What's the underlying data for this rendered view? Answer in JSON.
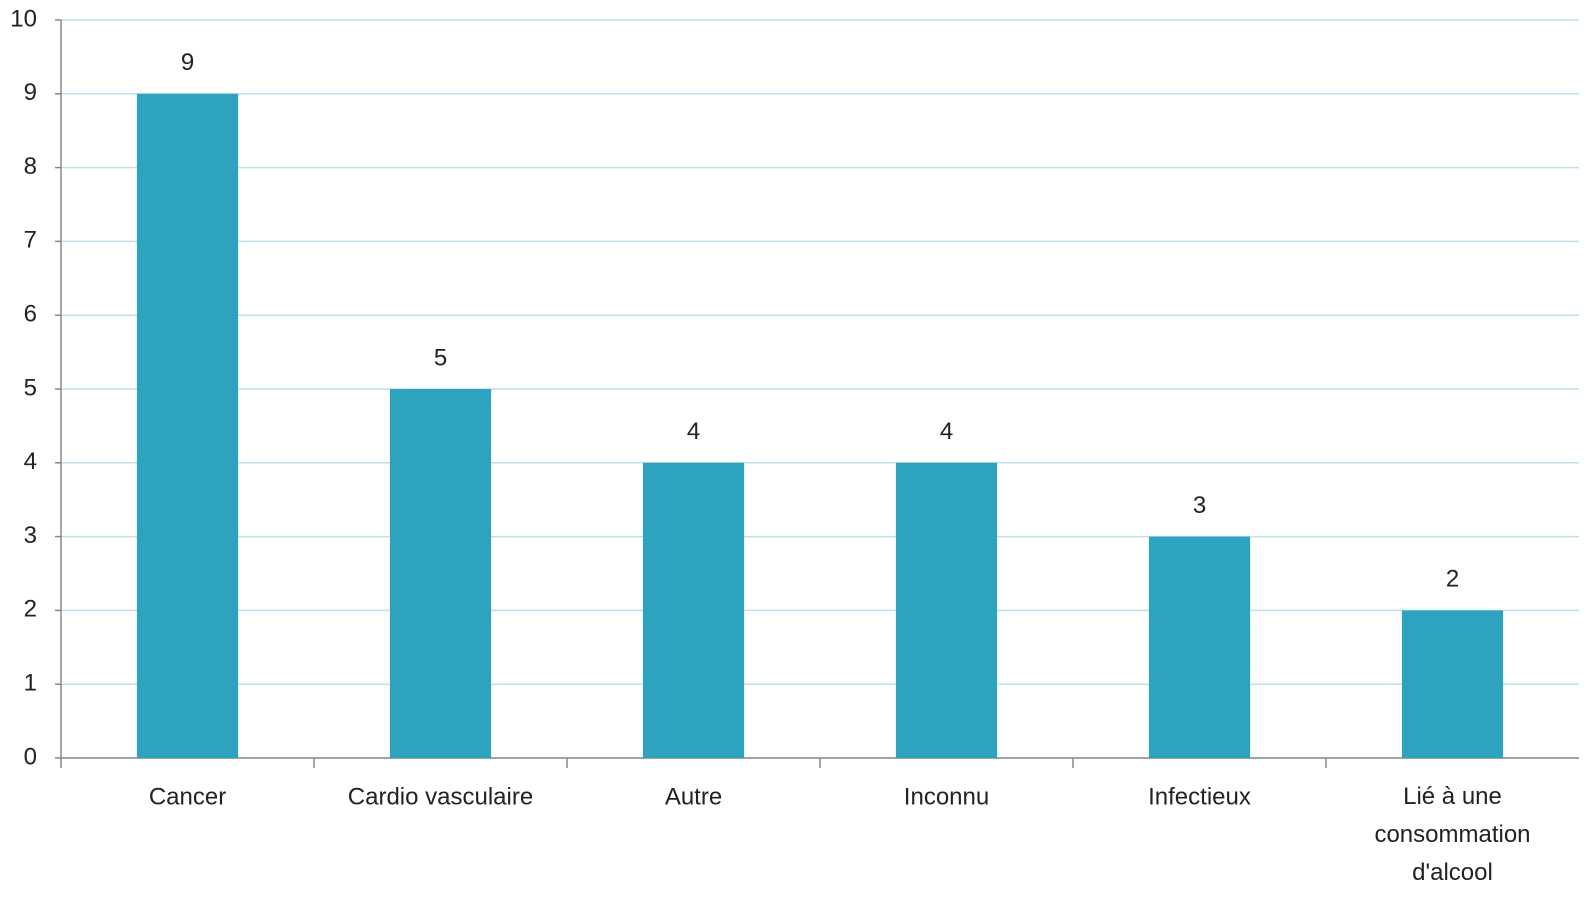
{
  "chart_data": {
    "type": "bar",
    "categories": [
      "Cancer",
      "Cardio vasculaire",
      "Autre",
      "Inconnu",
      "Infectieux",
      "Lié à une consommation d'alcool"
    ],
    "values": [
      9,
      5,
      4,
      4,
      3,
      2
    ],
    "color": "#2ea3bf",
    "ylim": [
      0,
      10
    ],
    "yticks": [
      0,
      1,
      2,
      3,
      4,
      5,
      6,
      7,
      8,
      9,
      10
    ],
    "grid": true
  }
}
